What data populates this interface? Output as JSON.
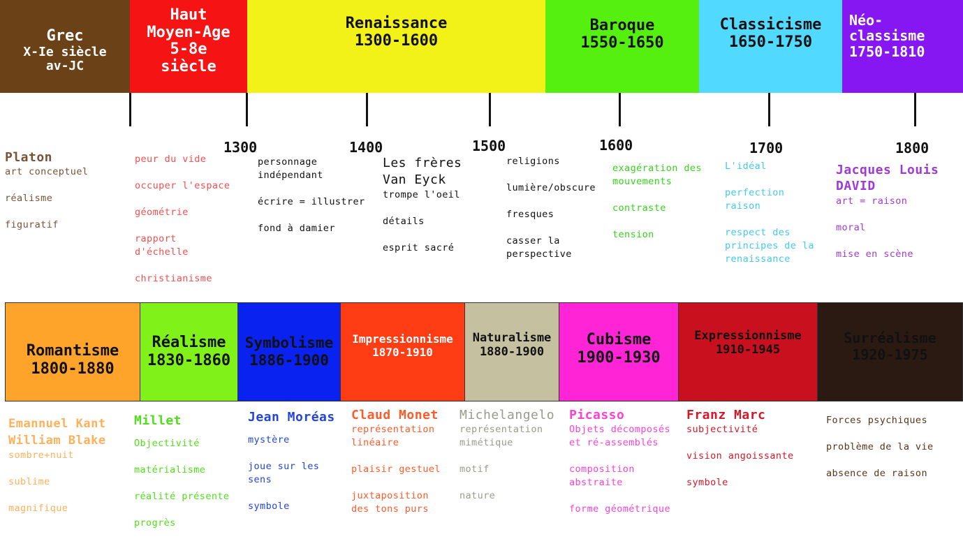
{
  "periods_top": [
    {
      "title": "Grec",
      "dates": "X-Ie siècle\nav-JC",
      "color": "#6b4218",
      "text_color": "#ffffff"
    },
    {
      "title": "Haut\nMoyen-Age",
      "dates": "5-8e\nsiècle",
      "color": "#f51313",
      "text_color": "#ffffff"
    },
    {
      "title": "Renaissance",
      "dates": "1300-1600",
      "color": "#f2f219",
      "text_color": "#111111"
    },
    {
      "title": "Baroque",
      "dates": "1550-1650",
      "color": "#55f00f",
      "text_color": "#111111"
    },
    {
      "title": "Classicisme",
      "dates": "1650-1750",
      "color": "#52d9ff",
      "text_color": "#111111"
    },
    {
      "title": "Néo-\nclassisme",
      "dates": "1750-1810",
      "color": "#8617f2",
      "text_color": "#ffffff"
    }
  ],
  "years": [
    "1300",
    "1400",
    "1500",
    "1600",
    "1700",
    "1800"
  ],
  "notes_top": [
    {
      "head": "Platon",
      "items": [
        "art conceptuel",
        "réalisme",
        "figuratif"
      ],
      "color": "#7a5236"
    },
    {
      "head": "",
      "items": [
        "peur du vide",
        "occuper l'espace",
        "géométrie",
        "rapport\nd'échelle",
        "christianisme"
      ],
      "color": "#f24f4f"
    },
    {
      "head": "",
      "items": [
        "personnage\nindépendant",
        "écrire = illustrer",
        "fond à damier"
      ],
      "color": "#111111"
    },
    {
      "head": "Les frères\nVan Eyck",
      "items": [
        "trompe l'oeil",
        "détails",
        "esprit sacré"
      ],
      "color": "#111111"
    },
    {
      "head": "",
      "items": [
        "religions",
        "lumière/obscure",
        "fresques",
        "casser la\nperspective"
      ],
      "color": "#111111"
    },
    {
      "head": "",
      "items": [
        "exagération des\nmouvements",
        "contraste",
        "tension"
      ],
      "color": "#35d419"
    },
    {
      "head": "",
      "items": [
        "L'idéal",
        "perfection\nraison",
        "respect des\nprincipes de la\nrenaissance"
      ],
      "color": "#41c9f2"
    },
    {
      "head": "Jacques Louis\nDAVID",
      "items": [
        "art = raison",
        "moral",
        "mise en scène"
      ],
      "color": "#a03ad6"
    }
  ],
  "periods_bottom": [
    {
      "title": "Romantisme",
      "dates": "1800-1880",
      "color": "#ffa42a",
      "text_color": "#111111"
    },
    {
      "title": "Réalisme",
      "dates": "1830-1860",
      "color": "#80f21a",
      "text_color": "#111111"
    },
    {
      "title": "Symbolisme",
      "dates": "1886-1900",
      "color": "#0a22f0",
      "text_color": "#111111"
    },
    {
      "title": "Impressionnisme",
      "dates": "1870-1910",
      "color": "#ff3d14",
      "text_color": "#ffffff"
    },
    {
      "title": "Naturalisme",
      "dates": "1880-1900",
      "color": "#c4c0a0",
      "text_color": "#111111"
    },
    {
      "title": "Cubisme",
      "dates": "1900-1930",
      "color": "#ff24d6",
      "text_color": "#111111"
    },
    {
      "title": "Expressionnisme",
      "dates": "1910-1945",
      "color": "#c8101e",
      "text_color": "#111111"
    },
    {
      "title": "Surréalisme",
      "dates": "1920-1975",
      "color": "#2b1a12",
      "text_color": "#111111"
    }
  ],
  "notes_bottom": [
    {
      "head": "Emannuel Kant\nWilliam Blake",
      "items": [
        "sombre+nuit",
        "sublime",
        "magnifique"
      ],
      "color": "#ffb05a"
    },
    {
      "head": "Millet",
      "items": [
        "Objectivité",
        "matérialisme",
        "réalité présente",
        "progrès"
      ],
      "color": "#4fe01a"
    },
    {
      "head": "Jean Moréas",
      "items": [
        "mystère",
        "joue sur les\nsens",
        "symbole"
      ],
      "color": "#2244e0"
    },
    {
      "head": "Claud Monet",
      "items": [
        "représentation\nlinéaire",
        "plaisir gestuel",
        "juxtaposition\ndes tons purs"
      ],
      "color": "#ff5a2a"
    },
    {
      "head": "Michelangelo",
      "items": [
        "représentation\nmimétique",
        "motif",
        "nature"
      ],
      "color": "#9a9a8c"
    },
    {
      "head": "Picasso",
      "items": [
        "Objets décomposés\net ré-assemblés",
        "composition\nabstraite",
        "forme géométrique"
      ],
      "color": "#ff40d8"
    },
    {
      "head": "Franz Marc",
      "items": [
        "subjectivité",
        "vision angoissante",
        "symbole"
      ],
      "color": "#d31828"
    },
    {
      "head": "",
      "items": [
        "Forces psychiques",
        "problème de la vie",
        "absence de raison"
      ],
      "color": "#5a3418"
    }
  ]
}
